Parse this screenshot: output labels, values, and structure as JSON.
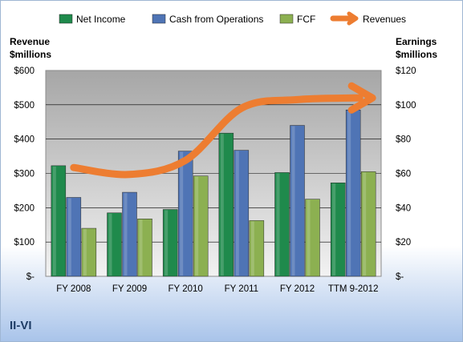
{
  "company_label": "II-VI",
  "chart_data": {
    "type": "bar",
    "categories": [
      "FY 2008",
      "FY 2009",
      "FY 2010",
      "FY 2011",
      "FY 2012",
      "TTM 9-2012"
    ],
    "left_axis": {
      "title_line1": "Revenue",
      "title_line2": "$millions",
      "ylim": [
        0,
        600
      ],
      "ticks": [
        0,
        100,
        200,
        300,
        400,
        500,
        600
      ],
      "tick_labels": [
        "$-",
        "$100",
        "$200",
        "$300",
        "$400",
        "$500",
        "$600"
      ]
    },
    "right_axis": {
      "title_line1": "Earnings",
      "title_line2": "$millions",
      "ylim": [
        0,
        120
      ],
      "ticks": [
        0,
        20,
        40,
        60,
        80,
        100,
        120
      ],
      "tick_labels": [
        "$-",
        "$20",
        "$40",
        "$60",
        "$80",
        "$100",
        "$120"
      ]
    },
    "series": [
      {
        "name": "Net Income",
        "axis": "right",
        "kind": "bar",
        "color": "#1f8a4c",
        "values": [
          64.5,
          37,
          39,
          83.5,
          60.5,
          54.5
        ]
      },
      {
        "name": "Cash from Operations",
        "axis": "right",
        "kind": "bar",
        "color": "#4f74b5",
        "values": [
          46,
          49,
          73,
          73.5,
          88,
          97
        ]
      },
      {
        "name": "FCF",
        "axis": "right",
        "kind": "bar",
        "color": "#8cb051",
        "values": [
          28,
          33.5,
          58.5,
          32.5,
          45,
          61
        ]
      },
      {
        "name": "Revenues",
        "axis": "left",
        "kind": "line",
        "color": "#ed7d31",
        "values": [
          317,
          297,
          338,
          490,
          515,
          520
        ]
      }
    ],
    "legend_position": "top",
    "grid": true
  }
}
